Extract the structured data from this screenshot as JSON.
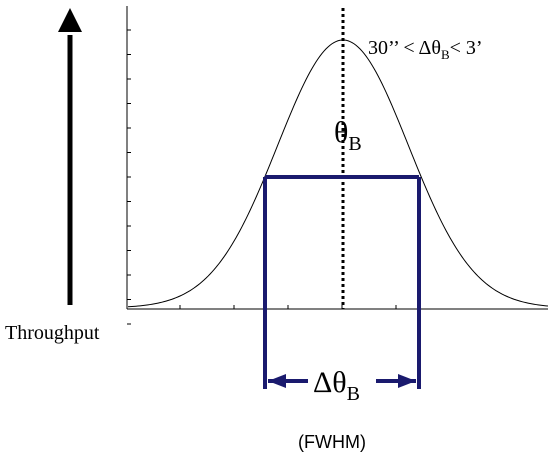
{
  "labels": {
    "range_prefix": "30’’ < Δθ",
    "range_sub": "B",
    "range_suffix": "< 3’",
    "center_main": "θ",
    "center_sub": "B",
    "width_main": "Δθ",
    "width_sub": "B",
    "throughput": "Throughput",
    "fwhm": "(FWHM)"
  },
  "colors": {
    "frame": "#000000",
    "curve": "#000000",
    "fwhm_box": "#1a1a6e",
    "arrow": "#000000"
  },
  "diagram": {
    "curve": "gaussian",
    "fwhm_level": "half-maximum",
    "peak_line": "dotted",
    "arrow_direction": "up"
  }
}
